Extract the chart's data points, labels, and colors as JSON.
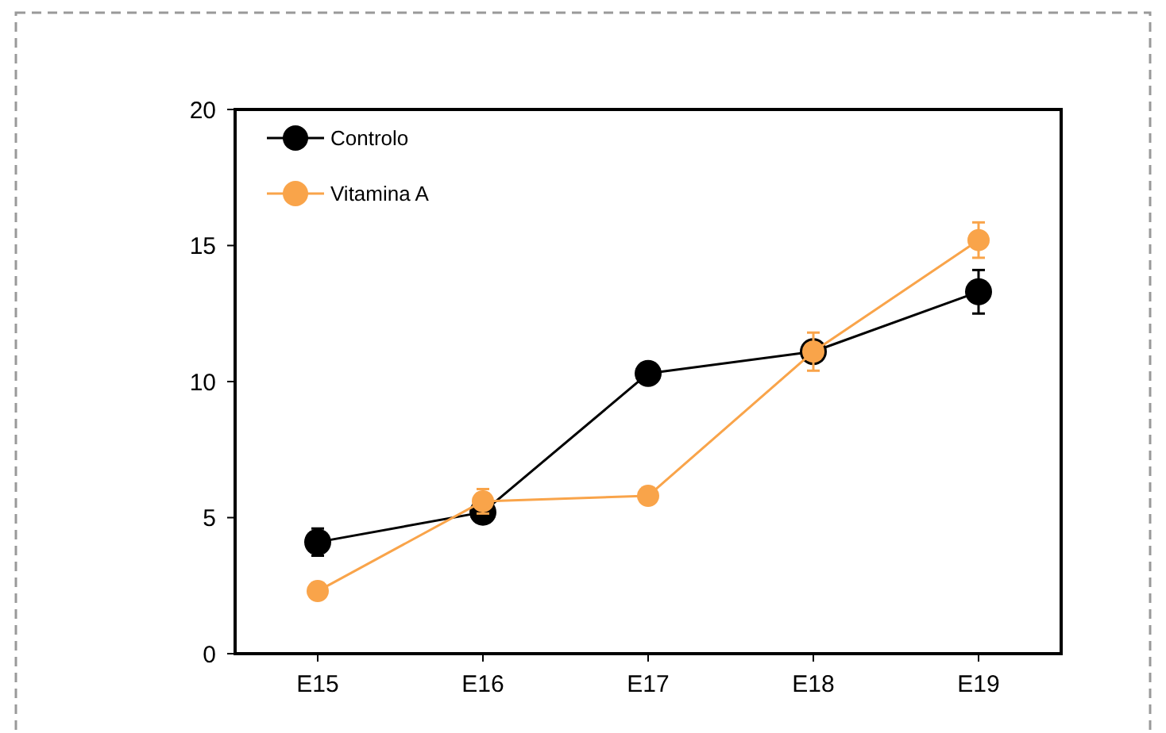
{
  "chart_data": {
    "type": "line",
    "categories": [
      "E15",
      "E16",
      "E17",
      "E18",
      "E19"
    ],
    "series": [
      {
        "name": "Controlo",
        "color": "#000000",
        "values": [
          4.1,
          5.2,
          10.3,
          11.1,
          13.3
        ],
        "errors": [
          0.5,
          0.3,
          null,
          null,
          0.8
        ]
      },
      {
        "name": "Vitamina A",
        "color": "#f9a44a",
        "values": [
          2.3,
          5.6,
          5.8,
          11.1,
          15.2
        ],
        "errors": [
          null,
          0.45,
          null,
          0.7,
          0.65
        ]
      }
    ],
    "ylim": [
      0,
      20
    ],
    "yticks": [
      0,
      5,
      10,
      15,
      20
    ],
    "grid": false,
    "legend": "top left",
    "marker": "circle",
    "line_style": "solid"
  }
}
